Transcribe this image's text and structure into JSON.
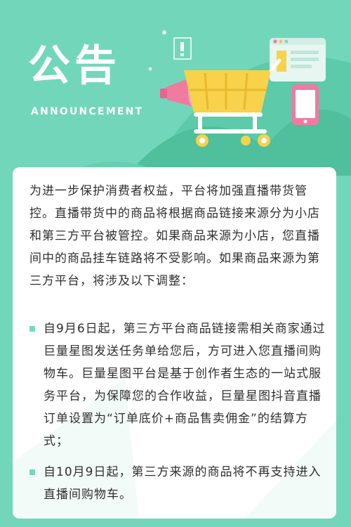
{
  "header": {
    "title": "公告",
    "subtitle": "ANNOUNCEMENT"
  },
  "notice": {
    "intro": "为进一步保护消费者权益，平台将加强直播带货管控。直播带货中的商品将根据商品链接来源分为小店和第三方平台被管控。如果商品来源为小店，您直播间中的商品挂车链路将不受影响。如果商品来源为第三方平台，将涉及以下调整：",
    "items": [
      "自9月6日起，第三方平台商品链接需相关商家通过巨量星图发送任务单给您后，方可进入您直播间购物车。巨量星图平台是基于创作者生态的一站式服务平台，为保障您的合作收益，巨量星图抖音直播订单设置为“订单底价+商品售卖佣金”的结算方式；",
      "自10月9日起，第三方来源的商品将不再支持进入直播间购物车。"
    ]
  },
  "colors": {
    "background": "#72d6bb",
    "accent": "#77d7bd",
    "card": "#ffffff",
    "text": "#2f2f2f"
  },
  "icons": [
    "shopping-cart-icon",
    "megaphone-icon",
    "phone-icon",
    "document-icon",
    "exclamation-icon"
  ]
}
